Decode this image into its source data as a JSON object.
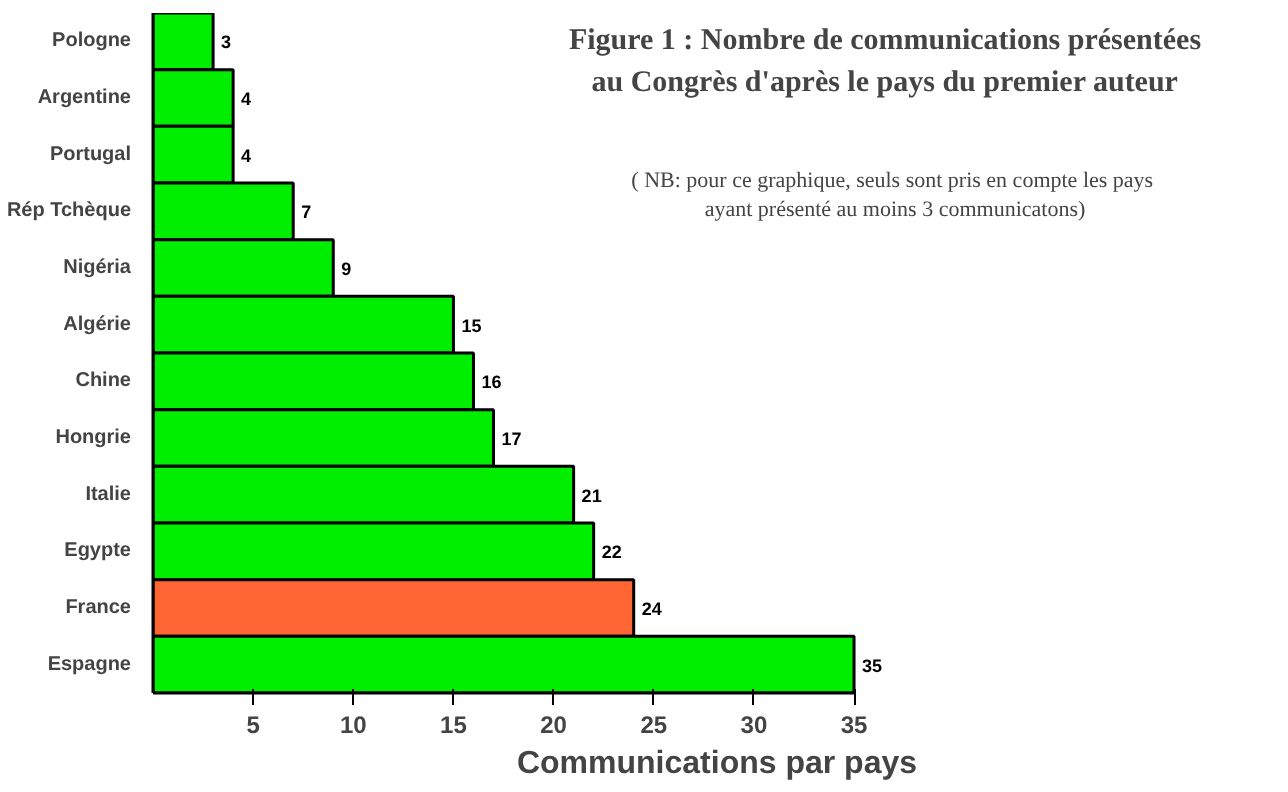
{
  "chart_data": {
    "type": "bar",
    "orientation": "horizontal",
    "title": "Figure 1 : Nombre de communications présentées\nau Congrès d'après le pays du premier auteur",
    "annotations": [
      "( NB:  pour ce graphique, seuls sont pris en compte les pays\nayant présenté au moins 3 communicatons)"
    ],
    "xlabel": "Communications par pays",
    "categories": [
      "Pologne",
      "Argentine",
      "Portugal",
      "Rép Tchèque",
      "Nigéria",
      "Algérie",
      "Chine",
      "Hongrie",
      "Italie",
      "Egypte",
      "France",
      "Espagne"
    ],
    "values": [
      3,
      4,
      4,
      7,
      9,
      15,
      16,
      17,
      21,
      22,
      24,
      35
    ],
    "colors": [
      "#00ee00",
      "#00ee00",
      "#00ee00",
      "#00ee00",
      "#00ee00",
      "#00ee00",
      "#00ee00",
      "#00ee00",
      "#00ee00",
      "#00ee00",
      "#ff6633",
      "#00ee00"
    ],
    "xlim": [
      0,
      35
    ],
    "xticks": [
      5,
      10,
      15,
      20,
      25,
      30,
      35
    ],
    "data_labels": true,
    "grid": false
  }
}
